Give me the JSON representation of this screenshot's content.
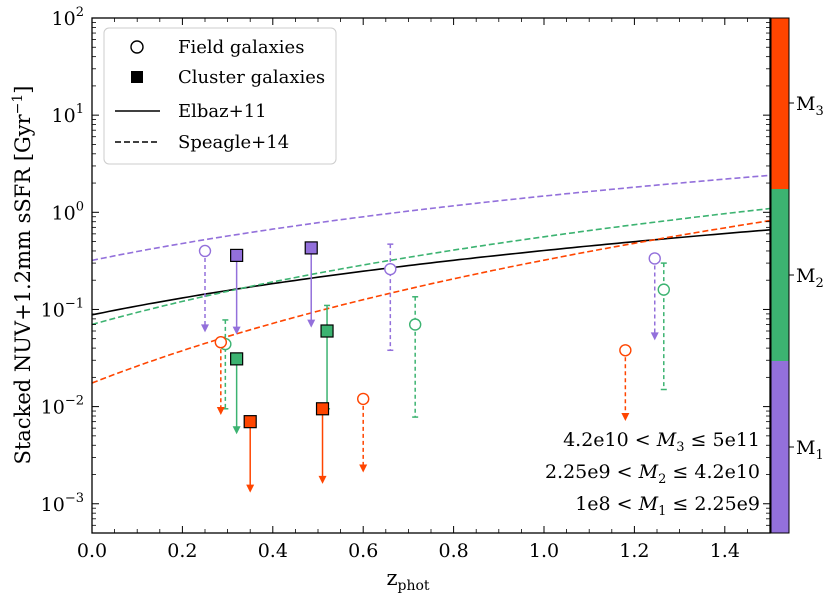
{
  "chart_data": {
    "type": "scatter",
    "title": "",
    "xlabel": "z",
    "xlabel_sub": "phot",
    "ylabel": "Stacked NUV+1.2mm sSFR [Gyr",
    "ylabel_sup": "−1",
    "ylabel_close": "]",
    "xlim": [
      0.0,
      1.5
    ],
    "ylim": [
      0.0005,
      100
    ],
    "yscale": "log",
    "x_ticks": [
      {
        "value": 0.0,
        "label": "0.0"
      },
      {
        "value": 0.2,
        "label": "0.2"
      },
      {
        "value": 0.4,
        "label": "0.4"
      },
      {
        "value": 0.6,
        "label": "0.6"
      },
      {
        "value": 0.8,
        "label": "0.8"
      },
      {
        "value": 1.0,
        "label": "1.0"
      },
      {
        "value": 1.2,
        "label": "1.2"
      },
      {
        "value": 1.4,
        "label": "1.4"
      }
    ],
    "y_ticks": [
      {
        "value": 0.001,
        "base": "10",
        "exp": "−3"
      },
      {
        "value": 0.01,
        "base": "10",
        "exp": "−2"
      },
      {
        "value": 0.1,
        "base": "10",
        "exp": "−1"
      },
      {
        "value": 1,
        "base": "10",
        "exp": "0"
      },
      {
        "value": 10,
        "base": "10",
        "exp": "1"
      },
      {
        "value": 100,
        "base": "10",
        "exp": "2"
      }
    ],
    "colors": {
      "M1": "#9370db",
      "M2": "#3cb371",
      "M3": "#ff4500",
      "black": "#000000"
    },
    "legend": {
      "placement": "top-left",
      "entries": [
        {
          "label": "Field galaxies",
          "marker": "open-circle"
        },
        {
          "label": "Cluster galaxies",
          "marker": "filled-square"
        },
        {
          "label": "Elbaz+11",
          "marker": "solid-line"
        },
        {
          "label": "Speagle+14",
          "marker": "dashed-line"
        }
      ]
    },
    "curves": [
      {
        "name": "Elbaz+11",
        "style": "solid",
        "color": "#000000",
        "a": 0.088,
        "b": 2.2
      },
      {
        "name": "Speagle+14 M1",
        "style": "dashed",
        "color": "#9370db",
        "a": 0.32,
        "b": 2.2
      },
      {
        "name": "Speagle+14 M2",
        "style": "dashed",
        "color": "#3cb371",
        "a": 0.07,
        "b": 3.0
      },
      {
        "name": "Speagle+14 M3",
        "style": "dashed",
        "color": "#ff4500",
        "a": 0.0175,
        "b": 4.2
      }
    ],
    "series": [
      {
        "name": "Field M1",
        "marker": "open-circle",
        "color": "#9370db",
        "points": [
          {
            "x": 0.25,
            "y": 0.4,
            "kind": "upper-limit",
            "to": 0.058
          },
          {
            "x": 0.66,
            "y": 0.26,
            "kind": "error",
            "lo": 0.038,
            "hi": 0.47
          },
          {
            "x": 1.245,
            "y": 0.335,
            "kind": "upper-limit",
            "to": 0.048
          }
        ]
      },
      {
        "name": "Field M2",
        "marker": "open-circle",
        "color": "#3cb371",
        "points": [
          {
            "x": 0.295,
            "y": 0.044,
            "kind": "error",
            "lo": 0.0095,
            "hi": 0.078
          },
          {
            "x": 0.715,
            "y": 0.07,
            "kind": "error",
            "lo": 0.0078,
            "hi": 0.135
          },
          {
            "x": 1.265,
            "y": 0.16,
            "kind": "error",
            "lo": 0.015,
            "hi": 0.3
          }
        ]
      },
      {
        "name": "Field M3",
        "marker": "open-circle",
        "color": "#ff4500",
        "points": [
          {
            "x": 0.285,
            "y": 0.046,
            "kind": "upper-limit",
            "to": 0.0082
          },
          {
            "x": 0.6,
            "y": 0.012,
            "kind": "upper-limit",
            "to": 0.0021
          },
          {
            "x": 1.18,
            "y": 0.038,
            "kind": "upper-limit",
            "to": 0.0071
          }
        ]
      },
      {
        "name": "Cluster M1",
        "marker": "filled-square",
        "color": "#9370db",
        "points": [
          {
            "x": 0.32,
            "y": 0.36,
            "kind": "upper-limit",
            "to": 0.055
          },
          {
            "x": 0.485,
            "y": 0.43,
            "kind": "upper-limit",
            "to": 0.065
          }
        ]
      },
      {
        "name": "Cluster M2",
        "marker": "filled-square",
        "color": "#3cb371",
        "points": [
          {
            "x": 0.32,
            "y": 0.031,
            "kind": "upper-limit",
            "to": 0.0052
          },
          {
            "x": 0.52,
            "y": 0.06,
            "kind": "error",
            "lo": 0.0095,
            "hi": 0.11
          }
        ]
      },
      {
        "name": "Cluster M3",
        "marker": "filled-square",
        "color": "#ff4500",
        "points": [
          {
            "x": 0.35,
            "y": 0.007,
            "kind": "upper-limit",
            "to": 0.0013
          },
          {
            "x": 0.51,
            "y": 0.0095,
            "kind": "upper-limit",
            "to": 0.0016
          }
        ]
      }
    ],
    "annotations": [
      {
        "lhs": "4.2e10 < ",
        "sym": "M",
        "sub": "3",
        "rhs": " ≤ 5e11"
      },
      {
        "lhs": "2.25e9 < ",
        "sym": "M",
        "sub": "2",
        "rhs": " ≤ 4.2e10"
      },
      {
        "lhs": "1e8 < ",
        "sym": "M",
        "sub": "1",
        "rhs": " ≤ 2.25e9"
      }
    ],
    "colorbar": {
      "segments": [
        {
          "label": "M",
          "sub": "3",
          "color": "#ff4500"
        },
        {
          "label": "M",
          "sub": "2",
          "color": "#3cb371"
        },
        {
          "label": "M",
          "sub": "1",
          "color": "#9370db"
        }
      ]
    }
  }
}
